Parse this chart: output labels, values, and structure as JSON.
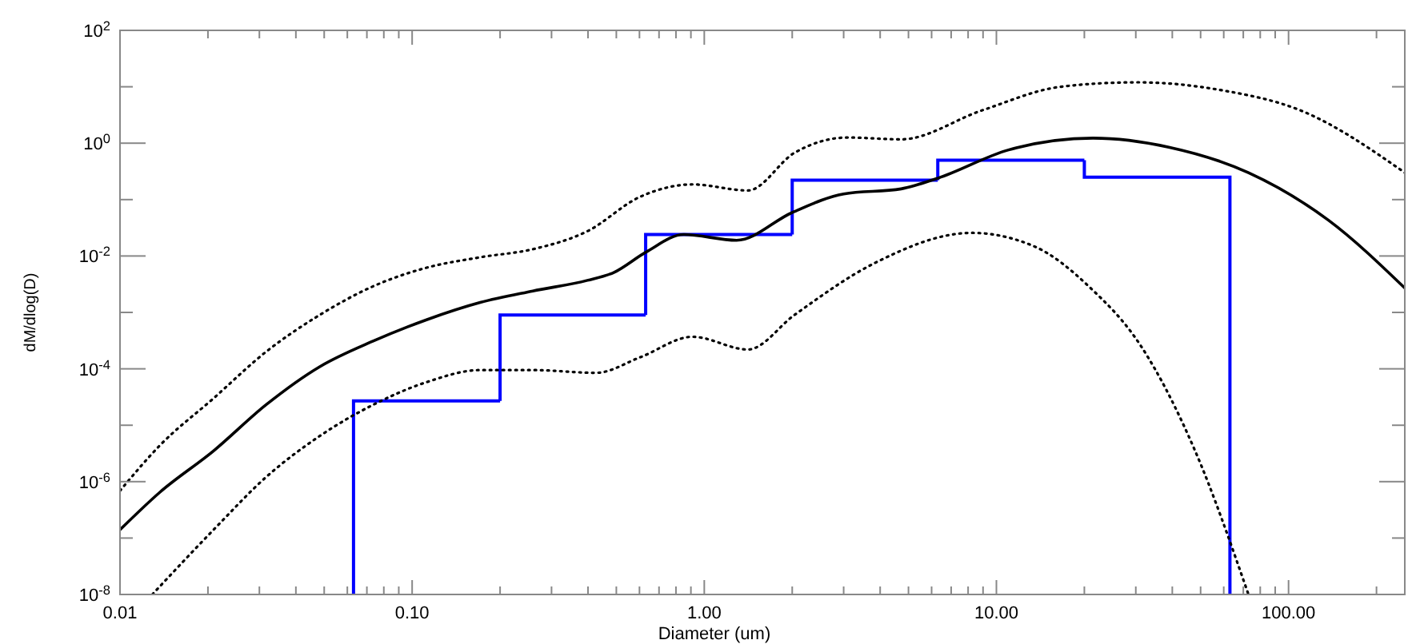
{
  "chart_data": {
    "type": "histogram",
    "xlabel": "Diameter (um)",
    "ylabel": "dM/dlog(D)",
    "log": "xy",
    "grid": false,
    "xlim": [
      0.01,
      250
    ],
    "ylim": [
      1e-08,
      100
    ],
    "xticks": [
      {
        "value": 0.01,
        "label": "0.01"
      },
      {
        "value": 0.02,
        "label": null
      },
      {
        "value": 0.03,
        "label": null
      },
      {
        "value": 0.04,
        "label": null
      },
      {
        "value": 0.05,
        "label": null
      },
      {
        "value": 0.06,
        "label": null
      },
      {
        "value": 0.07,
        "label": null
      },
      {
        "value": 0.08,
        "label": null
      },
      {
        "value": 0.09,
        "label": null
      },
      {
        "value": 0.1,
        "label": "0.10"
      },
      {
        "value": 0.2,
        "label": null
      },
      {
        "value": 0.3,
        "label": null
      },
      {
        "value": 0.4,
        "label": null
      },
      {
        "value": 0.5,
        "label": null
      },
      {
        "value": 0.6,
        "label": null
      },
      {
        "value": 0.7,
        "label": null
      },
      {
        "value": 0.8,
        "label": null
      },
      {
        "value": 0.9,
        "label": null
      },
      {
        "value": 1,
        "label": "1.00"
      },
      {
        "value": 2,
        "label": null
      },
      {
        "value": 3,
        "label": null
      },
      {
        "value": 4,
        "label": null
      },
      {
        "value": 5,
        "label": null
      },
      {
        "value": 6,
        "label": null
      },
      {
        "value": 7,
        "label": null
      },
      {
        "value": 8,
        "label": null
      },
      {
        "value": 9,
        "label": null
      },
      {
        "value": 10,
        "label": "10.00"
      },
      {
        "value": 20,
        "label": null
      },
      {
        "value": 30,
        "label": null
      },
      {
        "value": 40,
        "label": null
      },
      {
        "value": 50,
        "label": null
      },
      {
        "value": 60,
        "label": null
      },
      {
        "value": 70,
        "label": null
      },
      {
        "value": 80,
        "label": null
      },
      {
        "value": 90,
        "label": null
      },
      {
        "value": 100,
        "label": "100.00"
      },
      {
        "value": 200,
        "label": null
      }
    ],
    "yticks": [
      {
        "value": 1e-08,
        "label": "10$^{-8}$"
      },
      {
        "value": 1e-07,
        "label": null
      },
      {
        "value": 1e-06,
        "label": "10$^{-6}$"
      },
      {
        "value": 1e-05,
        "label": null
      },
      {
        "value": 0.0001,
        "label": "10$^{-4}$"
      },
      {
        "value": 0.001,
        "label": null
      },
      {
        "value": 0.01,
        "label": "10$^{-2}$"
      },
      {
        "value": 0.1,
        "label": null
      },
      {
        "value": 1,
        "label": "10$^{0}$"
      },
      {
        "value": 10,
        "label": null
      },
      {
        "value": 100,
        "label": "10$^{2}$"
      }
    ],
    "series": [
      {
        "color": "#0000ff",
        "bins": [
          0.063,
          0.2,
          0.63,
          2,
          6.3,
          20,
          63
        ],
        "values": [
          2.7e-05,
          0.0009,
          0.024,
          0.22,
          0.5,
          0.25
        ]
      },
      {
        "type": "line",
        "color": "#000000",
        "line_style": "solid",
        "x": [
          0.01,
          0.0137,
          0.0209,
          0.0316,
          0.0484,
          0.0735,
          0.112,
          0.171,
          0.259,
          0.398,
          0.49,
          0.631,
          0.851,
          1.29,
          2.0,
          3.0,
          4.72,
          6.31,
          11.0,
          21.4,
          38.9,
          72.9,
          137,
          250
        ],
        "values": [
          1.4e-07,
          6.5e-07,
          3.5e-06,
          2.3e-05,
          0.00011,
          0.00031,
          0.00074,
          0.0015,
          0.0024,
          0.0037,
          0.0051,
          0.0117,
          0.024,
          0.019,
          0.059,
          0.126,
          0.155,
          0.24,
          0.76,
          1.23,
          0.85,
          0.3,
          0.043,
          0.0027
        ]
      },
      {
        "type": "line",
        "color": "#000000",
        "line_style": "dotted",
        "x": [
          0.01,
          0.0137,
          0.0209,
          0.0316,
          0.0484,
          0.0735,
          0.112,
          0.171,
          0.259,
          0.398,
          0.603,
          0.912,
          1.41,
          2.04,
          3.09,
          4.72,
          8.91,
          16.6,
          30.2,
          58.9,
          110,
          250
        ],
        "values": [
          6.9e-07,
          4.4e-06,
          3e-05,
          0.0002,
          0.00091,
          0.0029,
          0.0062,
          0.0095,
          0.0132,
          0.0275,
          0.112,
          0.186,
          0.145,
          0.68,
          1.26,
          1.17,
          3.8,
          10,
          12,
          8.7,
          3.8,
          0.3
        ]
      },
      {
        "type": "line",
        "color": "#000000",
        "line_style": "dotted",
        "x": [
          0.0129,
          0.0209,
          0.0316,
          0.0484,
          0.0735,
          0.112,
          0.171,
          0.259,
          0.427,
          0.603,
          0.912,
          1.41,
          2.04,
          3.85,
          8.22,
          13.6,
          20.7,
          31.3,
          47.9,
          72.9
        ],
        "values": [
          1e-08,
          1.4e-07,
          1.2e-06,
          6.5e-06,
          2.3e-05,
          5.8e-05,
          9.5e-05,
          9.5e-05,
          8.5e-05,
          0.00016,
          0.00037,
          0.00022,
          0.00091,
          0.0076,
          0.0257,
          0.0145,
          0.0029,
          0.00025,
          3.5e-06,
          1e-08
        ]
      }
    ]
  }
}
